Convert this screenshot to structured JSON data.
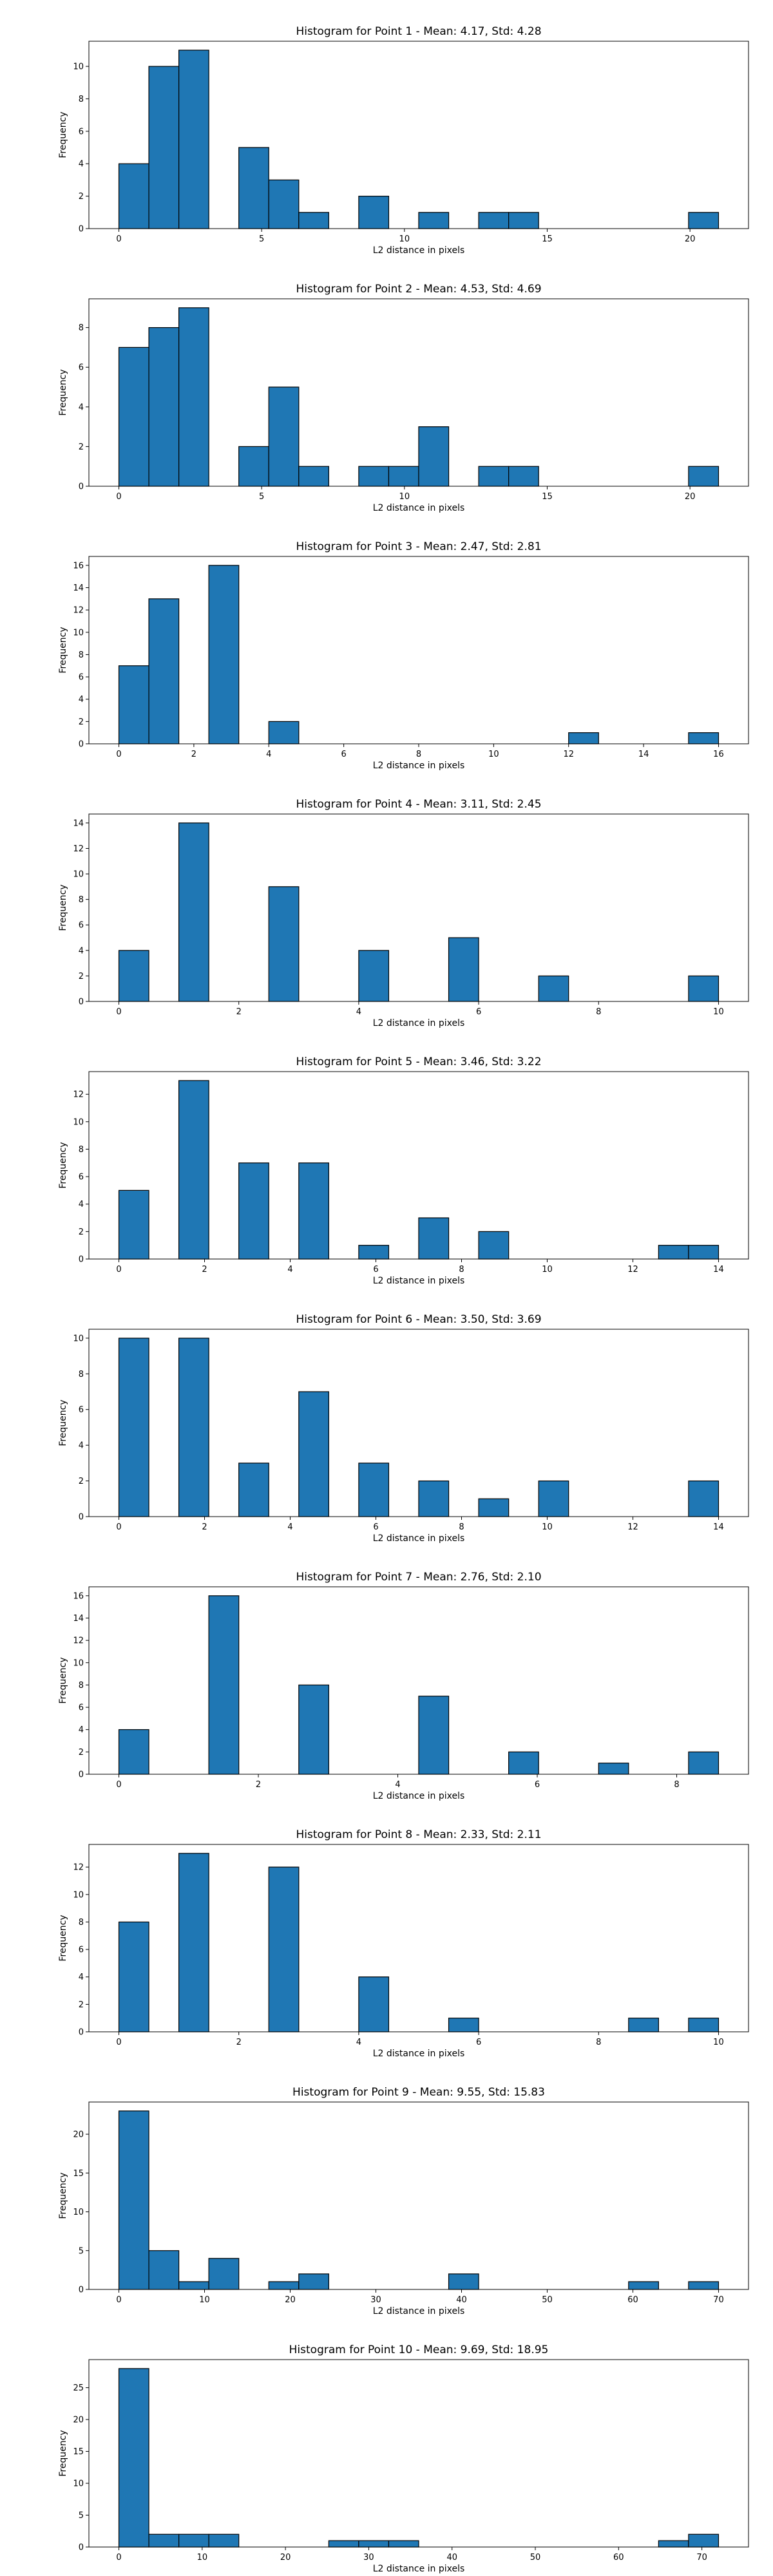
{
  "colors": {
    "bar_fill": "#1f77b4",
    "bar_edge": "#000000"
  },
  "chart_data": [
    {
      "type": "bar",
      "title": "Histogram for Point 1 - Mean: 4.17, Std: 4.28",
      "xlabel": "L2 distance in pixels",
      "ylabel": "Frequency",
      "xlim": [
        -1.05,
        22.05
      ],
      "ylim": [
        0,
        11.55
      ],
      "xticks": [
        0,
        5,
        10,
        15,
        20
      ],
      "yticks": [
        0,
        2,
        4,
        6,
        8,
        10
      ],
      "bin_width": 1.05,
      "bins": [
        {
          "x": 0.0,
          "count": 4
        },
        {
          "x": 1.05,
          "count": 10
        },
        {
          "x": 2.1,
          "count": 11
        },
        {
          "x": 4.2,
          "count": 5
        },
        {
          "x": 5.25,
          "count": 3
        },
        {
          "x": 6.3,
          "count": 1
        },
        {
          "x": 8.4,
          "count": 2
        },
        {
          "x": 10.5,
          "count": 1
        },
        {
          "x": 12.6,
          "count": 1
        },
        {
          "x": 13.65,
          "count": 1
        },
        {
          "x": 19.95,
          "count": 1
        }
      ]
    },
    {
      "type": "bar",
      "title": "Histogram for Point 2 - Mean: 4.53, Std: 4.69",
      "xlabel": "L2 distance in pixels",
      "ylabel": "Frequency",
      "xlim": [
        -1.05,
        22.05
      ],
      "ylim": [
        0,
        9.45
      ],
      "xticks": [
        0,
        5,
        10,
        15,
        20
      ],
      "yticks": [
        0,
        2,
        4,
        6,
        8
      ],
      "bin_width": 1.05,
      "bins": [
        {
          "x": 0.0,
          "count": 7
        },
        {
          "x": 1.05,
          "count": 8
        },
        {
          "x": 2.1,
          "count": 9
        },
        {
          "x": 4.2,
          "count": 2
        },
        {
          "x": 5.25,
          "count": 5
        },
        {
          "x": 6.3,
          "count": 1
        },
        {
          "x": 8.4,
          "count": 1
        },
        {
          "x": 9.45,
          "count": 1
        },
        {
          "x": 10.5,
          "count": 3
        },
        {
          "x": 12.6,
          "count": 1
        },
        {
          "x": 13.65,
          "count": 1
        },
        {
          "x": 19.95,
          "count": 1
        }
      ]
    },
    {
      "type": "bar",
      "title": "Histogram for Point 3 - Mean: 2.47, Std: 2.81",
      "xlabel": "L2 distance in pixels",
      "ylabel": "Frequency",
      "xlim": [
        -0.8,
        16.8
      ],
      "ylim": [
        0,
        16.8
      ],
      "xticks": [
        0,
        2,
        4,
        6,
        8,
        10,
        12,
        14,
        16
      ],
      "yticks": [
        0,
        2,
        4,
        6,
        8,
        10,
        12,
        14,
        16
      ],
      "bin_width": 0.8,
      "bins": [
        {
          "x": 0.0,
          "count": 7
        },
        {
          "x": 0.8,
          "count": 13
        },
        {
          "x": 2.4,
          "count": 16
        },
        {
          "x": 4.0,
          "count": 2
        },
        {
          "x": 12.0,
          "count": 1
        },
        {
          "x": 15.2,
          "count": 1
        }
      ]
    },
    {
      "type": "bar",
      "title": "Histogram for Point 4 - Mean: 3.11, Std: 2.45",
      "xlabel": "L2 distance in pixels",
      "ylabel": "Frequency",
      "xlim": [
        -0.5,
        10.5
      ],
      "ylim": [
        0,
        14.7
      ],
      "xticks": [
        0,
        2,
        4,
        6,
        8,
        10
      ],
      "yticks": [
        0,
        2,
        4,
        6,
        8,
        10,
        12,
        14
      ],
      "bin_width": 0.5,
      "bins": [
        {
          "x": 0.0,
          "count": 4
        },
        {
          "x": 1.0,
          "count": 14
        },
        {
          "x": 2.5,
          "count": 9
        },
        {
          "x": 4.0,
          "count": 4
        },
        {
          "x": 5.5,
          "count": 5
        },
        {
          "x": 7.0,
          "count": 2
        },
        {
          "x": 9.5,
          "count": 2
        }
      ]
    },
    {
      "type": "bar",
      "title": "Histogram for Point 5 - Mean: 3.46, Std: 3.22",
      "xlabel": "L2 distance in pixels",
      "ylabel": "Frequency",
      "xlim": [
        -0.7,
        14.7
      ],
      "ylim": [
        0,
        13.65
      ],
      "xticks": [
        0,
        2,
        4,
        6,
        8,
        10,
        12,
        14
      ],
      "yticks": [
        0,
        2,
        4,
        6,
        8,
        10,
        12
      ],
      "bin_width": 0.7,
      "bins": [
        {
          "x": 0.0,
          "count": 5
        },
        {
          "x": 1.4,
          "count": 13
        },
        {
          "x": 2.8,
          "count": 7
        },
        {
          "x": 4.2,
          "count": 7
        },
        {
          "x": 5.6,
          "count": 1
        },
        {
          "x": 7.0,
          "count": 3
        },
        {
          "x": 8.4,
          "count": 2
        },
        {
          "x": 12.6,
          "count": 1
        },
        {
          "x": 13.3,
          "count": 1
        }
      ]
    },
    {
      "type": "bar",
      "title": "Histogram for Point 6 - Mean: 3.50, Std: 3.69",
      "xlabel": "L2 distance in pixels",
      "ylabel": "Frequency",
      "xlim": [
        -0.7,
        14.7
      ],
      "ylim": [
        0,
        10.5
      ],
      "xticks": [
        0,
        2,
        4,
        6,
        8,
        10,
        12,
        14
      ],
      "yticks": [
        0,
        2,
        4,
        6,
        8,
        10
      ],
      "bin_width": 0.7,
      "bins": [
        {
          "x": 0.0,
          "count": 10
        },
        {
          "x": 1.4,
          "count": 10
        },
        {
          "x": 2.8,
          "count": 3
        },
        {
          "x": 4.2,
          "count": 7
        },
        {
          "x": 5.6,
          "count": 3
        },
        {
          "x": 7.0,
          "count": 2
        },
        {
          "x": 8.4,
          "count": 1
        },
        {
          "x": 9.8,
          "count": 2
        },
        {
          "x": 13.3,
          "count": 2
        }
      ]
    },
    {
      "type": "bar",
      "title": "Histogram for Point 7 - Mean: 2.76, Std: 2.10",
      "xlabel": "L2 distance in pixels",
      "ylabel": "Frequency",
      "xlim": [
        -0.43,
        9.03
      ],
      "ylim": [
        0,
        16.8
      ],
      "xticks": [
        0,
        2,
        4,
        6,
        8
      ],
      "yticks": [
        0,
        2,
        4,
        6,
        8,
        10,
        12,
        14,
        16
      ],
      "bin_width": 0.43,
      "bins": [
        {
          "x": 0.0,
          "count": 4
        },
        {
          "x": 1.29,
          "count": 16
        },
        {
          "x": 2.58,
          "count": 8
        },
        {
          "x": 4.3,
          "count": 7
        },
        {
          "x": 5.59,
          "count": 2
        },
        {
          "x": 6.88,
          "count": 1
        },
        {
          "x": 8.17,
          "count": 2
        }
      ]
    },
    {
      "type": "bar",
      "title": "Histogram for Point 8 - Mean: 2.33, Std: 2.11",
      "xlabel": "L2 distance in pixels",
      "ylabel": "Frequency",
      "xlim": [
        -0.5,
        10.5
      ],
      "ylim": [
        0,
        13.65
      ],
      "xticks": [
        0,
        2,
        4,
        6,
        8,
        10
      ],
      "yticks": [
        0,
        2,
        4,
        6,
        8,
        10,
        12
      ],
      "bin_width": 0.5,
      "bins": [
        {
          "x": 0.0,
          "count": 8
        },
        {
          "x": 1.0,
          "count": 13
        },
        {
          "x": 2.5,
          "count": 12
        },
        {
          "x": 4.0,
          "count": 4
        },
        {
          "x": 5.5,
          "count": 1
        },
        {
          "x": 8.5,
          "count": 1
        },
        {
          "x": 9.5,
          "count": 1
        }
      ]
    },
    {
      "type": "bar",
      "title": "Histogram for Point 9 - Mean: 9.55, Std: 15.83",
      "xlabel": "L2 distance in pixels",
      "ylabel": "Frequency",
      "xlim": [
        -3.5,
        73.5
      ],
      "ylim": [
        0,
        24.15
      ],
      "xticks": [
        0,
        10,
        20,
        30,
        40,
        50,
        60,
        70
      ],
      "yticks": [
        0,
        5,
        10,
        15,
        20
      ],
      "bin_width": 3.5,
      "bins": [
        {
          "x": 0.0,
          "count": 23
        },
        {
          "x": 3.5,
          "count": 5
        },
        {
          "x": 7.0,
          "count": 1
        },
        {
          "x": 10.5,
          "count": 4
        },
        {
          "x": 17.5,
          "count": 1
        },
        {
          "x": 21.0,
          "count": 2
        },
        {
          "x": 38.5,
          "count": 2
        },
        {
          "x": 59.5,
          "count": 1
        },
        {
          "x": 66.5,
          "count": 1
        }
      ]
    },
    {
      "type": "bar",
      "title": "Histogram for Point 10 - Mean: 9.69, Std: 18.95",
      "xlabel": "L2 distance in pixels",
      "ylabel": "Frequency",
      "xlim": [
        -3.6,
        75.6
      ],
      "ylim": [
        0,
        29.4
      ],
      "xticks": [
        0,
        10,
        20,
        30,
        40,
        50,
        60,
        70
      ],
      "yticks": [
        0,
        5,
        10,
        15,
        20,
        25
      ],
      "bin_width": 3.6,
      "bins": [
        {
          "x": 0.0,
          "count": 28
        },
        {
          "x": 3.6,
          "count": 2
        },
        {
          "x": 7.2,
          "count": 2
        },
        {
          "x": 10.8,
          "count": 2
        },
        {
          "x": 25.2,
          "count": 1
        },
        {
          "x": 28.8,
          "count": 1
        },
        {
          "x": 32.4,
          "count": 1
        },
        {
          "x": 64.8,
          "count": 1
        },
        {
          "x": 68.4,
          "count": 2
        }
      ]
    }
  ]
}
